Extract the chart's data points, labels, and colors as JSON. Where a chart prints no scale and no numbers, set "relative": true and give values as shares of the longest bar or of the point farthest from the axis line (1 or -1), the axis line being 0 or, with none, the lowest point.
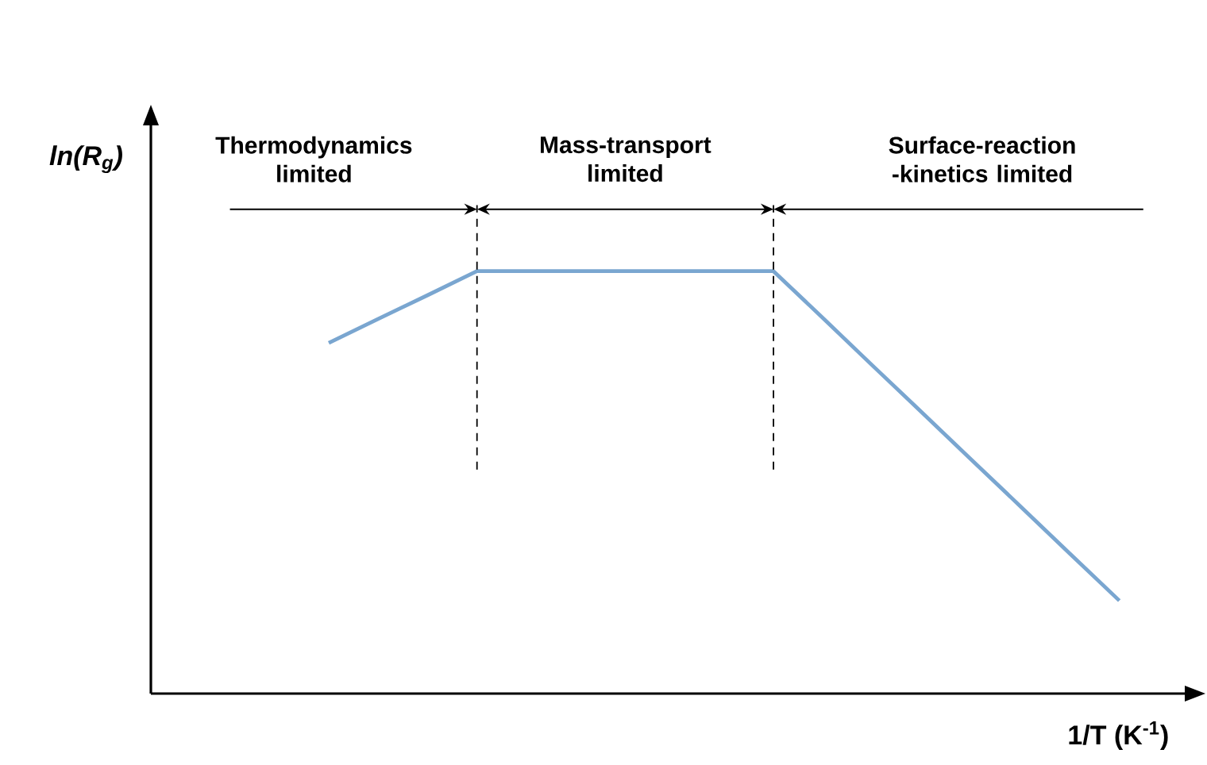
{
  "chart_data": {
    "type": "line",
    "relative": true,
    "xlabel": "1/T (K$^{-1}$)",
    "ylabel": "*ln(R$_{g}$)*",
    "categories": [
      null,
      null,
      null,
      null,
      null,
      null,
      null,
      null,
      null,
      null,
      null,
      null,
      null,
      null,
      null,
      null,
      null
    ],
    "series": [
      {
        "color": "#7aa6d0",
        "values": [
          0.83,
          0.887,
          0.943,
          1,
          1,
          1,
          1,
          1,
          1,
          1,
          0.889,
          0.777,
          0.666,
          0.554,
          0.443,
          0.331,
          0.22
        ]
      }
    ],
    "annotations": [
      "Thermodynamics limited",
      "Mass-transport limited",
      "Surface-reaction -kinetics limited"
    ]
  }
}
